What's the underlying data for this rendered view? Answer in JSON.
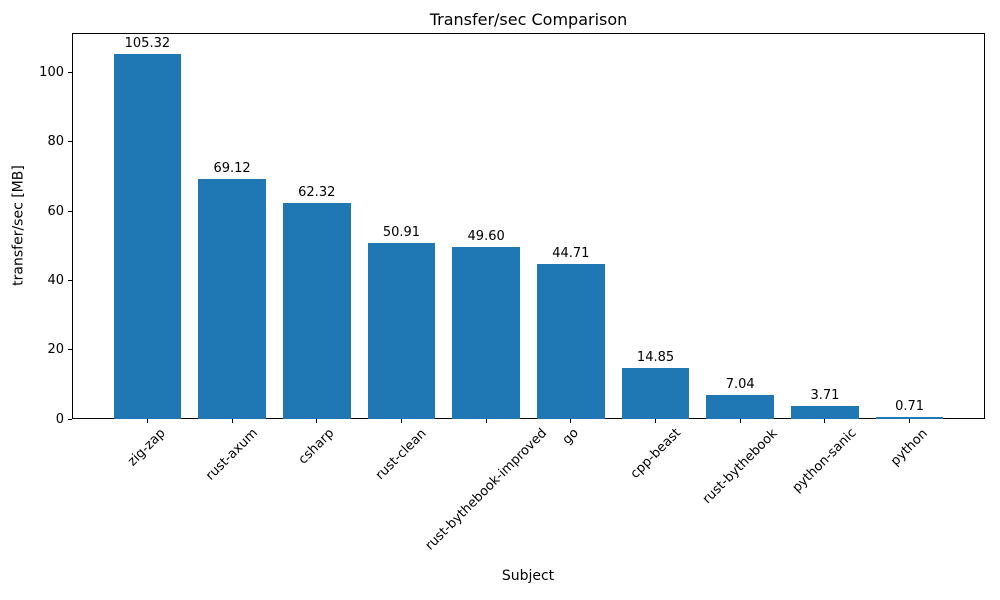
{
  "figure": {
    "background": "#ffffff",
    "text_color": "#000000",
    "spine_color": "#000000"
  },
  "chart_data": {
    "type": "bar",
    "title": "Transfer/sec Comparison",
    "xlabel": "Subject",
    "ylabel": "transfer/sec [MB]",
    "categories": [
      "zig-zap",
      "rust-axum",
      "csharp",
      "rust-clean",
      "rust-bythebook-improved",
      "go",
      "cpp-beast",
      "rust-bythebook",
      "python-sanic",
      "python"
    ],
    "values": [
      105.32,
      69.12,
      62.32,
      50.91,
      49.6,
      44.71,
      14.85,
      7.04,
      3.71,
      0.71
    ],
    "bar_labels": [
      "105.32",
      "69.12",
      "62.32",
      "50.91",
      "49.60",
      "44.71",
      "14.85",
      "7.04",
      "3.71",
      "0.71"
    ],
    "bar_color": "#1f77b4",
    "yticks": [
      0,
      20,
      40,
      60,
      80,
      100
    ],
    "ytick_labels": [
      "0",
      "20",
      "40",
      "60",
      "80",
      "100"
    ],
    "ylim": [
      0,
      111.4
    ],
    "xtick_rotation_deg": 45,
    "grid": false,
    "legend": "none"
  }
}
